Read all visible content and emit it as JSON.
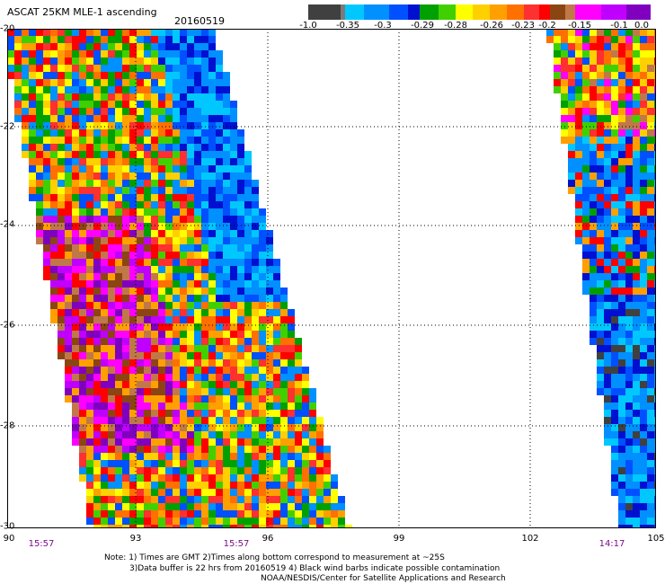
{
  "title": "ASCAT 25KM MLE-1 ascending",
  "date": "20160519",
  "colorbar": {
    "colors": [
      "#404040",
      "#7a7a7a",
      "#00c8ff",
      "#0090ff",
      "#0050ff",
      "#0010d0",
      "#00a000",
      "#40d000",
      "#ffff00",
      "#ffd000",
      "#ffa000",
      "#ff7000",
      "#ff3030",
      "#ff0000",
      "#8b4513",
      "#c07848",
      "#ff00ff",
      "#c000ff",
      "#8000c0"
    ],
    "tick_labels": [
      "-1.0",
      "-0.35",
      "-0.3",
      "-0.29",
      "-0.28",
      "-0.26",
      "-0.23",
      "-0.2",
      "-0.15",
      "-0.1",
      "0.0"
    ]
  },
  "axes": {
    "y_tick_labels": [
      "-20",
      "-22",
      "-24",
      "-26",
      "-28",
      "-30"
    ],
    "x_tick_labels": [
      "90",
      "93",
      "96",
      "99",
      "102",
      "105"
    ],
    "x_range": [
      90,
      105
    ],
    "y_range": [
      -30,
      -20
    ]
  },
  "pass_times": [
    "15:57",
    "15:57",
    "14:17"
  ],
  "notes": {
    "line1": "Note: 1) Times are GMT 2)Times along bottom correspond to measurement at ~25S",
    "line2": "3)Data buffer is 22 hrs from 20160519 4) Black wind barbs indicate possible contamination",
    "line3": "NOAA/NESDIS/Center for Satellite Applications and Research"
  }
}
